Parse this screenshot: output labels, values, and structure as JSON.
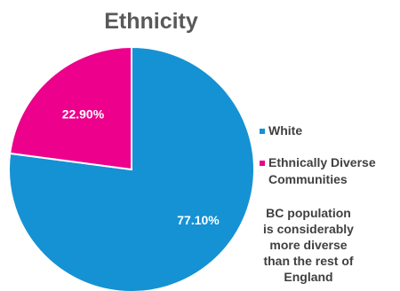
{
  "chart_data": {
    "type": "pie",
    "title": "Ethnicity",
    "slices": [
      {
        "label": "White",
        "value": 77.1,
        "display": "77.10%",
        "color": "#1592d3"
      },
      {
        "label": "Ethnically Diverse Communities",
        "value": 22.9,
        "display": "22.90%",
        "color": "#ec008c"
      }
    ],
    "legend": {
      "placement": "right",
      "items": [
        {
          "lines": [
            "White"
          ],
          "color": "#1592d3"
        },
        {
          "lines": [
            "Ethnically Diverse",
            "Communities"
          ],
          "color": "#ec008c"
        }
      ]
    },
    "annotation": {
      "lines": [
        "BC population",
        "is considerably",
        "more diverse",
        "than the rest of",
        "England"
      ]
    }
  }
}
